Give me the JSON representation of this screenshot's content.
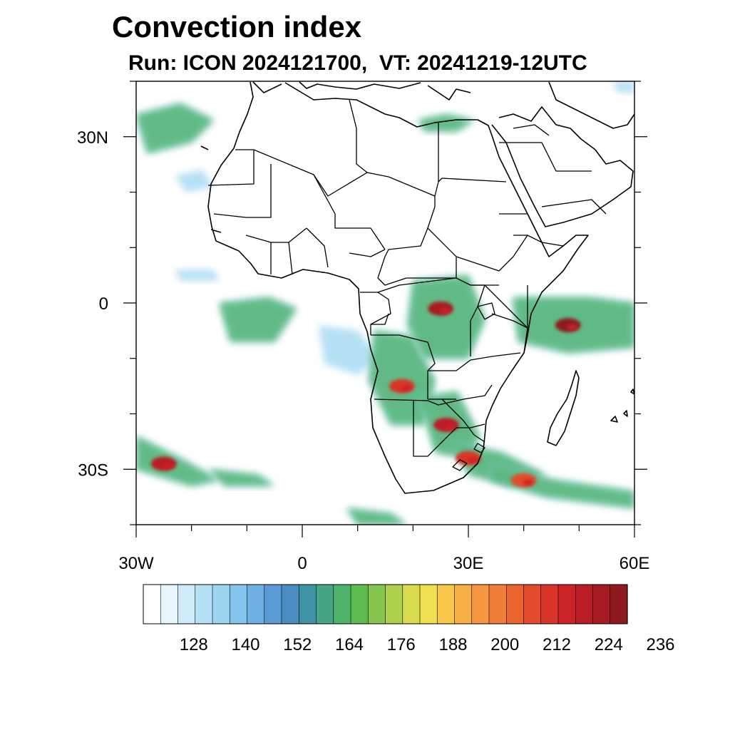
{
  "title": "Convection index",
  "subtitle": "Run: ICON 2024121700,  VT: 20241219-12UTC",
  "axes": {
    "lon_range": [
      -30,
      60
    ],
    "lat_range": [
      -40,
      40
    ],
    "x_ticks": [
      {
        "value": -30,
        "label": "30W"
      },
      {
        "value": 0,
        "label": "0"
      },
      {
        "value": 30,
        "label": "30E"
      },
      {
        "value": 60,
        "label": "60E"
      }
    ],
    "y_ticks": [
      {
        "value": 30,
        "label": "30N"
      },
      {
        "value": 0,
        "label": "0"
      },
      {
        "value": -30,
        "label": "30S"
      }
    ]
  },
  "colorbar": {
    "labels": [
      "128",
      "140",
      "152",
      "164",
      "176",
      "188",
      "200",
      "212",
      "224",
      "236"
    ],
    "colors": [
      "#ffffff",
      "#e8f5fc",
      "#cfeaf8",
      "#b6e0f5",
      "#9dd5f1",
      "#84c4ec",
      "#6fb0e2",
      "#5a9ad6",
      "#4b8cc2",
      "#3f93a6",
      "#46a487",
      "#4db26a",
      "#5cbc4f",
      "#86c64e",
      "#afd04d",
      "#d8da4f",
      "#f0e04f",
      "#f7c84a",
      "#f7b046",
      "#f59640",
      "#f07e38",
      "#eb6530",
      "#e24b2b",
      "#d93428",
      "#cc2427",
      "#b91c25",
      "#a61a22",
      "#8c1a1e"
    ]
  },
  "chart_data": {
    "type": "heatmap",
    "title": "Convection index",
    "subtitle": "Run: ICON 2024121700,  VT: 20241219-12UTC",
    "levels": [
      128,
      140,
      152,
      164,
      176,
      188,
      200,
      212,
      224,
      236
    ],
    "regions": [
      {
        "lon": -26,
        "lat": 31,
        "value": 160
      },
      {
        "lon": 26,
        "lat": 32,
        "value": 160
      },
      {
        "lon": -20,
        "lat": 22,
        "value": 138
      },
      {
        "lon": -19,
        "lat": 5,
        "value": 135
      },
      {
        "lon": -9,
        "lat": -4,
        "value": 165
      },
      {
        "lon": 8,
        "lat": -8,
        "value": 150
      },
      {
        "lon": 18,
        "lat": -15,
        "value": 205
      },
      {
        "lon": 25,
        "lat": -1,
        "value": 215
      },
      {
        "lon": 26,
        "lat": -22,
        "value": 210
      },
      {
        "lon": 30,
        "lat": -28,
        "value": 205
      },
      {
        "lon": 48,
        "lat": -4,
        "value": 230
      },
      {
        "lon": 40,
        "lat": -32,
        "value": 200
      },
      {
        "lon": -25,
        "lat": -29,
        "value": 210
      },
      {
        "lon": -12,
        "lat": -32,
        "value": 160
      },
      {
        "lon": 13,
        "lat": -38,
        "value": 165
      },
      {
        "lon": 58,
        "lat": 39,
        "value": 150
      }
    ]
  }
}
